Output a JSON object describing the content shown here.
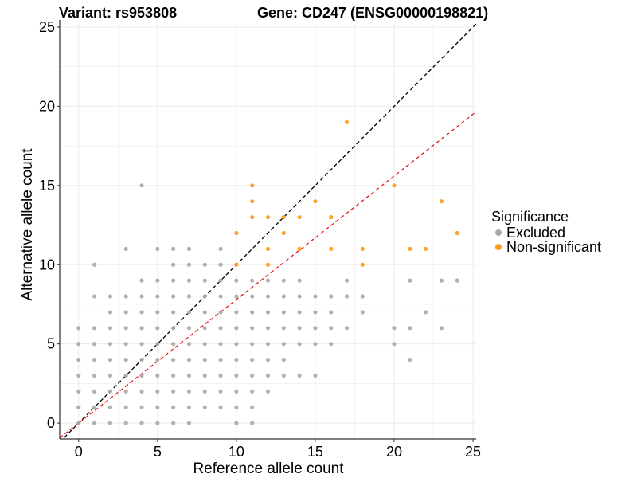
{
  "chart_data": {
    "type": "scatter",
    "title_left": "Variant: rs953808",
    "title_right": "Gene: CD247 (ENSG00000198821)",
    "xlabel": "Reference allele count",
    "ylabel": "Alternative allele count",
    "xlim": [
      -1.2,
      25.2
    ],
    "ylim": [
      -1.0,
      25.2
    ],
    "xticks": [
      0,
      5,
      10,
      15,
      20,
      25
    ],
    "yticks": [
      0,
      5,
      10,
      15,
      20,
      25
    ],
    "grid": true,
    "legend": {
      "title": "Significance",
      "position": "right"
    },
    "reference_lines": [
      {
        "name": "identity",
        "slope": 1.0,
        "intercept": 0,
        "color": "#000000",
        "dash": "dashed"
      },
      {
        "name": "ratio",
        "slope": 0.78,
        "intercept": 0,
        "color": "#e41a1c",
        "dash": "dashed"
      }
    ],
    "series": [
      {
        "name": "Excluded",
        "color": "#a9a9a9",
        "points": [
          [
            0,
            0
          ],
          [
            0,
            1
          ],
          [
            0,
            2
          ],
          [
            0,
            3
          ],
          [
            0,
            4
          ],
          [
            0,
            5
          ],
          [
            0,
            6
          ],
          [
            1,
            0
          ],
          [
            1,
            1
          ],
          [
            1,
            2
          ],
          [
            1,
            3
          ],
          [
            1,
            4
          ],
          [
            1,
            5
          ],
          [
            1,
            6
          ],
          [
            1,
            8
          ],
          [
            1,
            10
          ],
          [
            2,
            0
          ],
          [
            2,
            1
          ],
          [
            2,
            2
          ],
          [
            2,
            3
          ],
          [
            2,
            4
          ],
          [
            2,
            5
          ],
          [
            2,
            6
          ],
          [
            2,
            7
          ],
          [
            2,
            8
          ],
          [
            3,
            0
          ],
          [
            3,
            1
          ],
          [
            3,
            2
          ],
          [
            3,
            3
          ],
          [
            3,
            4
          ],
          [
            3,
            5
          ],
          [
            3,
            6
          ],
          [
            3,
            7
          ],
          [
            3,
            8
          ],
          [
            3,
            11
          ],
          [
            4,
            0
          ],
          [
            4,
            1
          ],
          [
            4,
            2
          ],
          [
            4,
            3
          ],
          [
            4,
            4
          ],
          [
            4,
            5
          ],
          [
            4,
            6
          ],
          [
            4,
            7
          ],
          [
            4,
            8
          ],
          [
            4,
            9
          ],
          [
            4,
            15
          ],
          [
            5,
            0
          ],
          [
            5,
            1
          ],
          [
            5,
            2
          ],
          [
            5,
            3
          ],
          [
            5,
            4
          ],
          [
            5,
            5
          ],
          [
            5,
            6
          ],
          [
            5,
            7
          ],
          [
            5,
            8
          ],
          [
            5,
            9
          ],
          [
            5,
            11
          ],
          [
            6,
            0
          ],
          [
            6,
            1
          ],
          [
            6,
            2
          ],
          [
            6,
            3
          ],
          [
            6,
            4
          ],
          [
            6,
            5
          ],
          [
            6,
            6
          ],
          [
            6,
            7
          ],
          [
            6,
            8
          ],
          [
            6,
            9
          ],
          [
            6,
            10
          ],
          [
            6,
            11
          ],
          [
            7,
            0
          ],
          [
            7,
            1
          ],
          [
            7,
            2
          ],
          [
            7,
            3
          ],
          [
            7,
            4
          ],
          [
            7,
            5
          ],
          [
            7,
            6
          ],
          [
            7,
            7
          ],
          [
            7,
            8
          ],
          [
            7,
            9
          ],
          [
            7,
            10
          ],
          [
            7,
            11
          ],
          [
            8,
            1
          ],
          [
            8,
            2
          ],
          [
            8,
            3
          ],
          [
            8,
            4
          ],
          [
            8,
            5
          ],
          [
            8,
            6
          ],
          [
            8,
            7
          ],
          [
            8,
            8
          ],
          [
            8,
            9
          ],
          [
            8,
            10
          ],
          [
            9,
            1
          ],
          [
            9,
            2
          ],
          [
            9,
            3
          ],
          [
            9,
            4
          ],
          [
            9,
            5
          ],
          [
            9,
            6
          ],
          [
            9,
            7
          ],
          [
            9,
            8
          ],
          [
            9,
            9
          ],
          [
            9,
            10
          ],
          [
            9,
            11
          ],
          [
            10,
            0
          ],
          [
            10,
            1
          ],
          [
            10,
            2
          ],
          [
            10,
            3
          ],
          [
            10,
            4
          ],
          [
            10,
            5
          ],
          [
            10,
            6
          ],
          [
            10,
            7
          ],
          [
            10,
            8
          ],
          [
            10,
            9
          ],
          [
            11,
            0
          ],
          [
            11,
            1
          ],
          [
            11,
            2
          ],
          [
            11,
            3
          ],
          [
            11,
            4
          ],
          [
            11,
            5
          ],
          [
            11,
            6
          ],
          [
            11,
            7
          ],
          [
            11,
            8
          ],
          [
            11,
            9
          ],
          [
            12,
            2
          ],
          [
            12,
            3
          ],
          [
            12,
            4
          ],
          [
            12,
            5
          ],
          [
            12,
            6
          ],
          [
            12,
            7
          ],
          [
            12,
            8
          ],
          [
            12,
            9
          ],
          [
            13,
            3
          ],
          [
            13,
            4
          ],
          [
            13,
            5
          ],
          [
            13,
            6
          ],
          [
            13,
            7
          ],
          [
            13,
            8
          ],
          [
            13,
            9
          ],
          [
            14,
            3
          ],
          [
            14,
            5
          ],
          [
            14,
            6
          ],
          [
            14,
            7
          ],
          [
            14,
            8
          ],
          [
            14,
            9
          ],
          [
            15,
            3
          ],
          [
            15,
            5
          ],
          [
            15,
            6
          ],
          [
            15,
            7
          ],
          [
            15,
            8
          ],
          [
            16,
            5
          ],
          [
            16,
            6
          ],
          [
            16,
            7
          ],
          [
            16,
            8
          ],
          [
            17,
            6
          ],
          [
            17,
            8
          ],
          [
            17,
            9
          ],
          [
            18,
            7
          ],
          [
            18,
            8
          ],
          [
            20,
            5
          ],
          [
            20,
            6
          ],
          [
            21,
            4
          ],
          [
            21,
            6
          ],
          [
            21,
            9
          ],
          [
            22,
            7
          ],
          [
            23,
            6
          ],
          [
            23,
            9
          ],
          [
            24,
            9
          ]
        ]
      },
      {
        "name": "Non-significant",
        "color": "#ff9a1a",
        "points": [
          [
            10,
            10
          ],
          [
            10,
            12
          ],
          [
            11,
            13
          ],
          [
            11,
            14
          ],
          [
            11,
            15
          ],
          [
            12,
            10
          ],
          [
            12,
            11
          ],
          [
            12,
            13
          ],
          [
            13,
            12
          ],
          [
            13,
            13
          ],
          [
            14,
            11
          ],
          [
            14,
            13
          ],
          [
            15,
            14
          ],
          [
            16,
            11
          ],
          [
            16,
            13
          ],
          [
            17,
            19
          ],
          [
            18,
            10
          ],
          [
            18,
            11
          ],
          [
            20,
            15
          ],
          [
            21,
            11
          ],
          [
            22,
            11
          ],
          [
            23,
            14
          ],
          [
            24,
            12
          ]
        ]
      }
    ]
  }
}
